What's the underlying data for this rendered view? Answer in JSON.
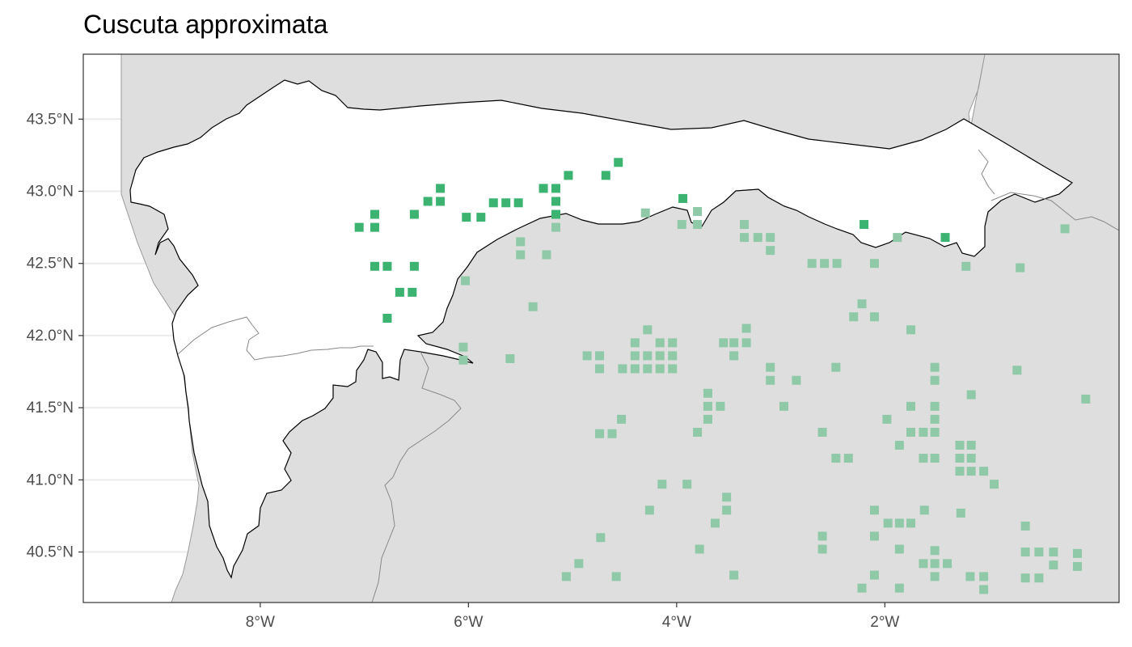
{
  "title": "Cuscuta approximata",
  "chart_data": {
    "type": "map",
    "title": "Cuscuta approximata",
    "xlim": [
      -9.7,
      0.25
    ],
    "ylim": [
      40.15,
      43.95
    ],
    "x_ticks": [
      {
        "value": -8,
        "label": "8°W"
      },
      {
        "value": -6,
        "label": "6°W"
      },
      {
        "value": -4,
        "label": "4°W"
      },
      {
        "value": -2,
        "label": "2°W"
      }
    ],
    "y_ticks": [
      {
        "value": 43.5,
        "label": "43.5°N"
      },
      {
        "value": 43.0,
        "label": "43.0°N"
      },
      {
        "value": 42.5,
        "label": "42.5°N"
      },
      {
        "value": 42.0,
        "label": "42.0°N"
      },
      {
        "value": 41.5,
        "label": "41.5°N"
      },
      {
        "value": 41.0,
        "label": "41.0°N"
      },
      {
        "value": 40.5,
        "label": "40.5°N"
      }
    ],
    "grid": true,
    "colors": {
      "inside": "#3cb371",
      "outside": "#8fc9a8",
      "land": "#dedede",
      "study_area": "#ffffff",
      "grid": "#ebebeb",
      "boundary": "#000000",
      "border": "#999999"
    },
    "series": [
      {
        "points": [
          [
            -7.05,
            42.75
          ],
          [
            -6.9,
            42.75
          ],
          [
            -6.9,
            42.84
          ],
          [
            -6.9,
            42.48
          ],
          [
            -6.78,
            42.48
          ],
          [
            -6.66,
            42.3
          ],
          [
            -6.54,
            42.3
          ],
          [
            -6.78,
            42.12
          ],
          [
            -6.52,
            42.48
          ],
          [
            -6.52,
            42.84
          ],
          [
            -6.39,
            42.93
          ],
          [
            -6.27,
            42.93
          ],
          [
            -6.27,
            43.02
          ],
          [
            -6.02,
            42.82
          ],
          [
            -5.88,
            42.82
          ],
          [
            -5.76,
            42.92
          ],
          [
            -5.64,
            42.92
          ],
          [
            -5.52,
            42.92
          ],
          [
            -5.28,
            43.02
          ],
          [
            -5.16,
            43.02
          ],
          [
            -5.16,
            42.93
          ],
          [
            -5.16,
            42.84
          ],
          [
            -5.04,
            43.11
          ],
          [
            -4.68,
            43.11
          ],
          [
            -4.56,
            43.2
          ],
          [
            -3.94,
            42.95
          ],
          [
            -2.2,
            42.77
          ],
          [
            -1.42,
            42.68
          ]
        ]
      },
      {
        "points": [
          [
            -5.5,
            42.65
          ],
          [
            -5.5,
            42.56
          ],
          [
            -5.25,
            42.56
          ],
          [
            -5.16,
            42.75
          ],
          [
            -4.3,
            42.85
          ],
          [
            -3.95,
            42.77
          ],
          [
            -3.8,
            42.86
          ],
          [
            -3.8,
            42.77
          ],
          [
            -3.35,
            42.77
          ],
          [
            -3.35,
            42.68
          ],
          [
            -3.22,
            42.68
          ],
          [
            -3.1,
            42.68
          ],
          [
            -3.1,
            42.59
          ],
          [
            -2.7,
            42.5
          ],
          [
            -2.58,
            42.5
          ],
          [
            -2.46,
            42.5
          ],
          [
            -2.1,
            42.5
          ],
          [
            -1.88,
            42.68
          ],
          [
            -1.22,
            42.48
          ],
          [
            -0.7,
            42.47
          ],
          [
            -0.27,
            42.74
          ],
          [
            -6.03,
            42.38
          ],
          [
            -5.38,
            42.2
          ],
          [
            -6.05,
            41.92
          ],
          [
            -6.05,
            41.83
          ],
          [
            -5.6,
            41.84
          ],
          [
            -4.86,
            41.86
          ],
          [
            -4.74,
            41.86
          ],
          [
            -4.74,
            41.77
          ],
          [
            -4.52,
            41.77
          ],
          [
            -4.4,
            41.77
          ],
          [
            -4.4,
            41.86
          ],
          [
            -4.4,
            41.95
          ],
          [
            -4.28,
            41.77
          ],
          [
            -4.28,
            41.86
          ],
          [
            -4.28,
            42.04
          ],
          [
            -4.16,
            41.77
          ],
          [
            -4.16,
            41.86
          ],
          [
            -4.16,
            41.95
          ],
          [
            -4.04,
            41.77
          ],
          [
            -4.04,
            41.86
          ],
          [
            -4.04,
            41.95
          ],
          [
            -3.55,
            41.95
          ],
          [
            -3.45,
            41.95
          ],
          [
            -3.45,
            41.86
          ],
          [
            -3.33,
            41.95
          ],
          [
            -3.33,
            42.05
          ],
          [
            -3.1,
            41.78
          ],
          [
            -3.1,
            41.69
          ],
          [
            -2.85,
            41.69
          ],
          [
            -2.47,
            41.78
          ],
          [
            -2.3,
            42.13
          ],
          [
            -2.22,
            42.22
          ],
          [
            -2.1,
            42.13
          ],
          [
            -1.75,
            42.04
          ],
          [
            -0.73,
            41.76
          ],
          [
            -3.7,
            41.6
          ],
          [
            -3.7,
            41.51
          ],
          [
            -3.58,
            41.51
          ],
          [
            -3.7,
            41.42
          ],
          [
            -3.8,
            41.33
          ],
          [
            -2.97,
            41.51
          ],
          [
            -2.6,
            41.33
          ],
          [
            -1.98,
            41.42
          ],
          [
            -1.86,
            41.24
          ],
          [
            -1.75,
            41.51
          ],
          [
            -1.75,
            41.33
          ],
          [
            -1.63,
            41.33
          ],
          [
            -1.63,
            41.15
          ],
          [
            -1.52,
            41.15
          ],
          [
            -1.52,
            41.33
          ],
          [
            -1.52,
            41.42
          ],
          [
            -1.52,
            41.51
          ],
          [
            -1.52,
            41.69
          ],
          [
            -1.52,
            41.78
          ],
          [
            -1.28,
            41.24
          ],
          [
            -1.17,
            41.24
          ],
          [
            -1.28,
            41.15
          ],
          [
            -1.17,
            41.15
          ],
          [
            -1.28,
            41.06
          ],
          [
            -1.17,
            41.06
          ],
          [
            -1.05,
            41.06
          ],
          [
            -1.17,
            41.59
          ],
          [
            -0.95,
            40.97
          ],
          [
            -0.07,
            41.56
          ],
          [
            -4.53,
            41.42
          ],
          [
            -4.74,
            41.32
          ],
          [
            -4.62,
            41.32
          ],
          [
            -2.47,
            41.15
          ],
          [
            -2.35,
            41.15
          ],
          [
            -4.14,
            40.97
          ],
          [
            -3.9,
            40.97
          ],
          [
            -4.26,
            40.79
          ],
          [
            -3.52,
            40.88
          ],
          [
            -3.52,
            40.79
          ],
          [
            -3.63,
            40.7
          ],
          [
            -3.78,
            40.52
          ],
          [
            -3.45,
            40.34
          ],
          [
            -4.73,
            40.6
          ],
          [
            -4.94,
            40.42
          ],
          [
            -5.06,
            40.33
          ],
          [
            -4.58,
            40.33
          ],
          [
            -2.6,
            40.61
          ],
          [
            -2.6,
            40.52
          ],
          [
            -2.1,
            40.79
          ],
          [
            -1.97,
            40.7
          ],
          [
            -1.86,
            40.7
          ],
          [
            -1.75,
            40.7
          ],
          [
            -1.62,
            40.79
          ],
          [
            -1.27,
            40.77
          ],
          [
            -2.1,
            40.61
          ],
          [
            -1.86,
            40.52
          ],
          [
            -2.1,
            40.34
          ],
          [
            -2.22,
            40.25
          ],
          [
            -1.86,
            40.25
          ],
          [
            -1.52,
            40.51
          ],
          [
            -1.52,
            40.42
          ],
          [
            -1.52,
            40.33
          ],
          [
            -1.63,
            40.42
          ],
          [
            -1.4,
            40.42
          ],
          [
            -1.18,
            40.33
          ],
          [
            -1.05,
            40.33
          ],
          [
            -1.05,
            40.24
          ],
          [
            -0.65,
            40.68
          ],
          [
            -0.65,
            40.5
          ],
          [
            -0.52,
            40.5
          ],
          [
            -0.38,
            40.5
          ],
          [
            -0.38,
            40.41
          ],
          [
            -0.65,
            40.32
          ],
          [
            -0.52,
            40.32
          ],
          [
            -0.15,
            40.49
          ],
          [
            -0.15,
            40.4
          ]
        ]
      }
    ]
  }
}
